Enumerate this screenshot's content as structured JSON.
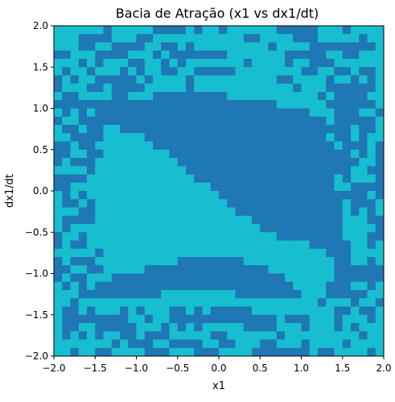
{
  "chart_data": {
    "type": "heatmap",
    "title": "Bacia de Atração (x1 vs dx1/dt)",
    "xlabel": "x1",
    "ylabel": "dx1/dt",
    "xlim": [
      -2.0,
      2.0
    ],
    "ylim": [
      -2.0,
      2.0
    ],
    "xticks": [
      "−2.0",
      "−1.5",
      "−1.0",
      "−0.5",
      "0.0",
      "0.5",
      "1.0",
      "1.5",
      "2.0"
    ],
    "xtick_values": [
      -2.0,
      -1.5,
      -1.0,
      -0.5,
      0.0,
      0.5,
      1.0,
      1.5,
      2.0
    ],
    "yticks": [
      "−2.0",
      "−1.5",
      "−1.0",
      "−0.5",
      "0.0",
      "0.5",
      "1.0",
      "1.5",
      "2.0"
    ],
    "ytick_values": [
      -2.0,
      -1.5,
      -1.0,
      -0.5,
      0.0,
      0.5,
      1.0,
      1.5,
      2.0
    ],
    "grid": false,
    "legend": "none",
    "grid_resolution": 40,
    "basin_labels": [
      "1",
      "0"
    ],
    "colors": {
      "basin_1": "#17becf",
      "basin_0": "#1f77b4"
    },
    "rows_top_to_bottom": [
      "1111110111110000101101111110000011101111",
      "1110000111001111111111100111100011111011",
      "1110011000011001011111111101111000000001",
      "0011100001110100000001111111000001100111",
      "1110101110011010111111101111011000111111",
      "1011011101011001100000111111110011001001",
      "0101100000101111011111111110011110110101",
      "0111001000011111011111111111101110000001",
      "1001111001110000000001111111111101000011",
      "0000000000000000000000000001111110000001",
      "1010100000000000000000000000000111000110",
      "0110000000000000000000000000000001000001",
      "1001001100000000000000000000000000001001",
      "1100001111100000000000000000000001001011",
      "0010011111110000000000000000000000100010",
      "0011001111111100000000000000000000001010",
      "0100011111111110000000000000000000000110",
      "1111011111111111000000000000000000001100",
      "0000111111111111100000000000000000101110",
      "0011111111111111111000000000000000110000",
      "1010111111111111111100000000000000000010",
      "1001011111111111111110000000000000010001",
      "1110011111111111111111000000000000010101",
      "1000011111111111111111110000000000011100",
      "1011111111111111111111111000000000011110",
      "0110111111111111111111111110000000011100",
      "0100111111111111111111111111111000001101",
      "1111101111111111111111111111111110001111",
      "0100011111111110000000011111111111001101",
      "0011001111100000000000000011111111000000",
      "0100111000000000000000000000111111000000",
      "1010100000000000000000000000011110001101",
      "1110000000000111111111000000001110000011",
      "1101111111111111111111111111111101110110",
      "1001011101011100101000001111111111001001",
      "1000000001101100000000000001000111011101",
      "1001100000111010101111100001110111010111",
      "1010101100100011111001111110111111111011",
      "1111111010001100001100111001110111101111",
      "1101100111100011100011110000000100111101"
    ]
  }
}
